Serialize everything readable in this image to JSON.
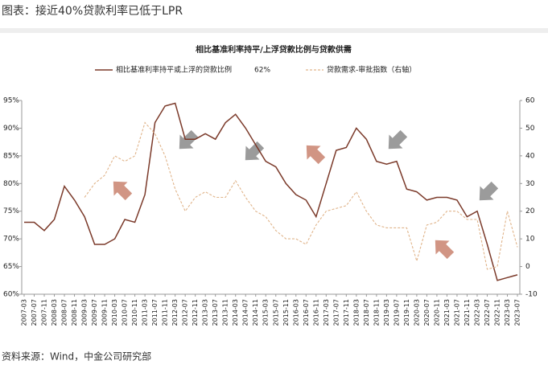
{
  "header": {
    "title": "图表：接近40%贷款利率已低于LPR"
  },
  "source": "资料来源：Wind，中金公司研究部",
  "chart_data": {
    "type": "line",
    "title": "相比基准利率持平/上浮贷款比例与贷款供需",
    "annotation": "62%",
    "categories": [
      "2007-03",
      "2007-07",
      "2007-11",
      "2008-03",
      "2008-07",
      "2008-11",
      "2009-03",
      "2009-07",
      "2009-11",
      "2010-03",
      "2010-07",
      "2010-11",
      "2011-03",
      "2011-07",
      "2011-11",
      "2012-03",
      "2012-07",
      "2012-11",
      "2013-03",
      "2013-07",
      "2013-11",
      "2014-03",
      "2014-07",
      "2014-11",
      "2015-03",
      "2015-07",
      "2015-11",
      "2016-03",
      "2016-07",
      "2016-11",
      "2017-03",
      "2017-07",
      "2017-11",
      "2018-03",
      "2018-07",
      "2018-11",
      "2019-03",
      "2019-07",
      "2019-11",
      "2020-03",
      "2020-07",
      "2020-11",
      "2021-03",
      "2021-07",
      "2021-11",
      "2022-03",
      "2022-07",
      "2022-11",
      "2023-03",
      "2023-07"
    ],
    "series": [
      {
        "name": "相比基准利率持平或上浮的贷款比例",
        "color": "#7b3a2a",
        "dash": false,
        "values": [
          73,
          73,
          71.5,
          73.5,
          79.5,
          77,
          74,
          69,
          69,
          70,
          73.5,
          73,
          78,
          91,
          94,
          94.5,
          88,
          88,
          89,
          88,
          91,
          92.5,
          90,
          87,
          84,
          83,
          80,
          78,
          77,
          74,
          80,
          86,
          86.5,
          90,
          88,
          84,
          83.5,
          84,
          79,
          78.5,
          77,
          77.5,
          77.5,
          77,
          74,
          75,
          69,
          62.5,
          63,
          63.5
        ]
      },
      {
        "name": "贷款需求-审批指数（右轴）",
        "color": "#e0b48a",
        "dash": true,
        "axis": "y2",
        "values": [
          null,
          null,
          null,
          null,
          null,
          null,
          25,
          30,
          33,
          40,
          38,
          40,
          52,
          48,
          40,
          28,
          20,
          25,
          27,
          25,
          25,
          31,
          25,
          20,
          18,
          13,
          10,
          10,
          8,
          15,
          20,
          21,
          22,
          27,
          20,
          15,
          14,
          14,
          14,
          2,
          15,
          16,
          20,
          20,
          17,
          17,
          -1,
          0,
          20,
          7
        ]
      }
    ],
    "ylim": [
      60,
      95
    ],
    "yticks": [
      {
        "value": 60,
        "label": "60%"
      },
      {
        "value": 65,
        "label": "65%"
      },
      {
        "value": 70,
        "label": "70%"
      },
      {
        "value": 75,
        "label": "75%"
      },
      {
        "value": 80,
        "label": "80%"
      },
      {
        "value": 85,
        "label": "85%"
      },
      {
        "value": 90,
        "label": "90%"
      },
      {
        "value": 95,
        "label": "95%"
      }
    ],
    "y2lim": [
      -10,
      60
    ],
    "y2ticks": [
      -10,
      0,
      10,
      20,
      30,
      40,
      50,
      60
    ],
    "grid": false
  }
}
